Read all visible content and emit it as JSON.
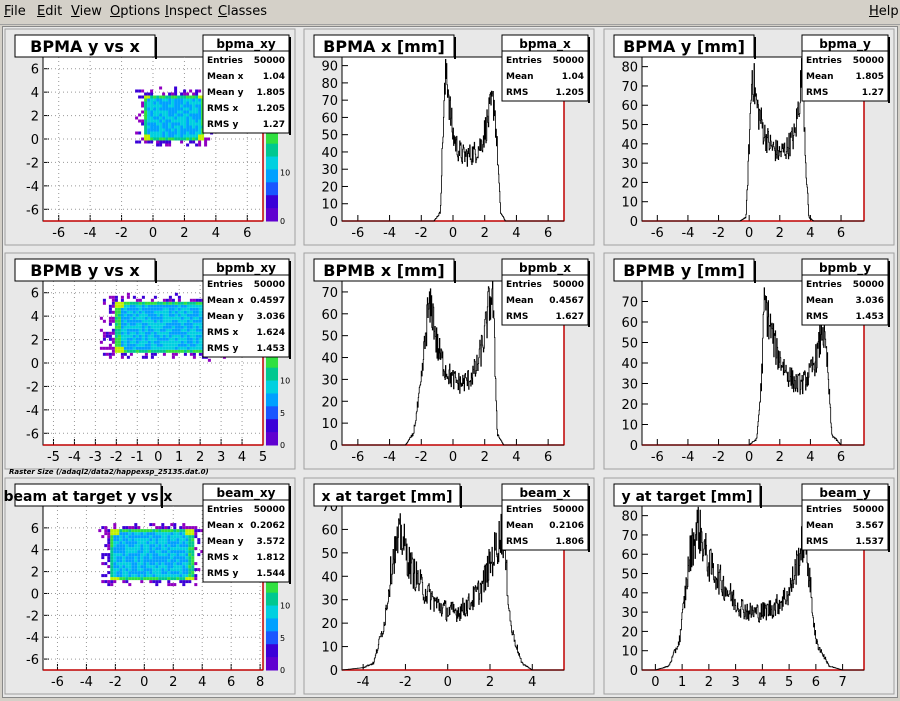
{
  "menu": {
    "items": [
      {
        "label": "File",
        "u": "F",
        "rest": "ile"
      },
      {
        "label": "Edit",
        "u": "E",
        "rest": "dit"
      },
      {
        "label": "View",
        "u": "V",
        "rest": "iew"
      },
      {
        "label": "Options",
        "u": "O",
        "rest": "ptions"
      },
      {
        "label": "Inspect",
        "u": "I",
        "rest": "nspect"
      },
      {
        "label": "Classes",
        "u": "C",
        "rest": "lasses"
      }
    ],
    "help": {
      "label": "Help",
      "u": "H",
      "rest": "elp"
    }
  },
  "raster_caption": "Raster Size (/adaql2/data2/happexsp_25135.dat.0)",
  "chart_data": [
    {
      "type": "scatter",
      "subtype": "2d-histogram",
      "title": "BPMA y vs x",
      "stats": {
        "name": "bpma_xy",
        "rows": [
          [
            "Entries",
            "50000"
          ],
          [
            "Mean x",
            "1.04"
          ],
          [
            "Mean y",
            "1.805"
          ],
          [
            "RMS x",
            "1.205"
          ],
          [
            "RMS y",
            "1.27"
          ]
        ]
      },
      "xlim": [
        -7,
        7
      ],
      "ylim": [
        -7,
        7
      ],
      "xticks": [
        "-6",
        "-4",
        "-2",
        "0",
        "2",
        "4",
        "6"
      ],
      "yticks": [
        "-6",
        "-4",
        "-2",
        "0",
        "2",
        "4",
        "6"
      ],
      "colorbar_ticks": [
        "0",
        "10",
        "20"
      ],
      "distribution": {
        "x_range": [
          -0.6,
          3.1
        ],
        "y_range": [
          0,
          3.9
        ]
      }
    },
    {
      "type": "bar",
      "subtype": "histogram",
      "title": "BPMA x [mm]",
      "stats": {
        "name": "bpma_x",
        "rows": [
          [
            "Entries",
            "50000"
          ],
          [
            "Mean",
            "1.04"
          ],
          [
            "RMS",
            "1.205"
          ]
        ]
      },
      "xlim": [
        -7,
        7
      ],
      "ylim": [
        0,
        95
      ],
      "xticks": [
        "-6",
        "-4",
        "-2",
        "0",
        "2",
        "4",
        "6"
      ],
      "yticks": [
        "0",
        "10",
        "20",
        "30",
        "40",
        "50",
        "60",
        "70",
        "80",
        "90"
      ],
      "x": [
        -1.2,
        -0.8,
        -0.6,
        -0.4,
        -0.2,
        0,
        0.3,
        0.6,
        1,
        1.4,
        1.8,
        2.1,
        2.4,
        2.6,
        2.8,
        3,
        3.3,
        3.6
      ],
      "values": [
        0,
        5,
        60,
        90,
        65,
        50,
        42,
        38,
        38,
        40,
        45,
        55,
        65,
        70,
        40,
        5,
        0,
        0
      ]
    },
    {
      "type": "bar",
      "subtype": "histogram",
      "title": "BPMA y [mm]",
      "stats": {
        "name": "bpma_y",
        "rows": [
          [
            "Entries",
            "50000"
          ],
          [
            "Mean",
            "1.805"
          ],
          [
            "RMS",
            "1.27"
          ]
        ]
      },
      "xlim": [
        -7,
        7.5
      ],
      "ylim": [
        0,
        85
      ],
      "xticks": [
        "-6",
        "-4",
        "-2",
        "0",
        "2",
        "4",
        "6"
      ],
      "yticks": [
        "0",
        "10",
        "20",
        "30",
        "40",
        "50",
        "60",
        "70",
        "80"
      ],
      "x": [
        -0.6,
        -0.2,
        0,
        0.2,
        0.5,
        1,
        1.5,
        2,
        2.5,
        3,
        3.3,
        3.5,
        3.7,
        3.9,
        4.2
      ],
      "values": [
        0,
        2,
        40,
        78,
        60,
        45,
        38,
        35,
        38,
        45,
        65,
        80,
        30,
        2,
        0
      ]
    },
    {
      "type": "scatter",
      "subtype": "2d-histogram",
      "title": "BPMB y vs x",
      "stats": {
        "name": "bpmb_xy",
        "rows": [
          [
            "Entries",
            "50000"
          ],
          [
            "Mean x",
            "0.4597"
          ],
          [
            "Mean y",
            "3.036"
          ],
          [
            "RMS x",
            "1.624"
          ],
          [
            "RMS y",
            "1.453"
          ]
        ]
      },
      "xlim": [
        -5.5,
        5
      ],
      "ylim": [
        -7,
        7
      ],
      "xticks": [
        "-5",
        "-4",
        "-3",
        "-2",
        "-1",
        "0",
        "1",
        "2",
        "3",
        "4",
        "5"
      ],
      "yticks": [
        "-6",
        "-4",
        "-2",
        "0",
        "2",
        "4",
        "6"
      ],
      "colorbar_ticks": [
        "0",
        "5",
        "10",
        "15"
      ],
      "distribution": {
        "x_range": [
          -2.2,
          2.8
        ],
        "y_range": [
          1,
          5.3
        ]
      }
    },
    {
      "type": "bar",
      "subtype": "histogram",
      "title": "BPMB x [mm]",
      "stats": {
        "name": "bpmb_x",
        "rows": [
          [
            "Entries",
            "50000"
          ],
          [
            "Mean",
            "0.4567"
          ],
          [
            "RMS",
            "1.627"
          ]
        ]
      },
      "xlim": [
        -7,
        7
      ],
      "ylim": [
        0,
        75
      ],
      "xticks": [
        "-6",
        "-4",
        "-2",
        "0",
        "2",
        "4",
        "6"
      ],
      "yticks": [
        "0",
        "10",
        "20",
        "30",
        "40",
        "50",
        "60",
        "70"
      ],
      "x": [
        -3,
        -2.5,
        -2,
        -1.6,
        -1.3,
        -1,
        -0.5,
        0,
        0.5,
        1,
        1.5,
        2,
        2.3,
        2.5,
        2.8,
        3.2,
        3.6
      ],
      "values": [
        0,
        5,
        28,
        60,
        62,
        45,
        35,
        30,
        28,
        30,
        35,
        50,
        65,
        70,
        5,
        0,
        0
      ]
    },
    {
      "type": "bar",
      "subtype": "histogram",
      "title": "BPMB y [mm]",
      "stats": {
        "name": "bpmb_y",
        "rows": [
          [
            "Entries",
            "50000"
          ],
          [
            "Mean",
            "3.036"
          ],
          [
            "RMS",
            "1.453"
          ]
        ]
      },
      "xlim": [
        -7,
        7.5
      ],
      "ylim": [
        0,
        80
      ],
      "xticks": [
        "-6",
        "-4",
        "-2",
        "0",
        "2",
        "4",
        "6"
      ],
      "yticks": [
        "0",
        "10",
        "20",
        "30",
        "40",
        "50",
        "60",
        "70"
      ],
      "x": [
        0,
        0.5,
        0.8,
        1,
        1.3,
        1.8,
        2.5,
        3,
        3.5,
        4,
        4.5,
        4.8,
        5.1,
        5.4,
        6,
        6.5
      ],
      "values": [
        0,
        3,
        30,
        70,
        60,
        45,
        35,
        30,
        30,
        35,
        45,
        58,
        40,
        5,
        0,
        0
      ]
    },
    {
      "type": "scatter",
      "subtype": "2d-histogram",
      "title": "beam at target y vs x",
      "stats": {
        "name": "beam_xy",
        "rows": [
          [
            "Entries",
            "50000"
          ],
          [
            "Mean x",
            "0.2062"
          ],
          [
            "Mean y",
            "3.572"
          ],
          [
            "RMS x",
            "1.812"
          ],
          [
            "RMS y",
            "1.544"
          ]
        ]
      },
      "xlim": [
        -7,
        8.2
      ],
      "ylim": [
        -7,
        8
      ],
      "xticks": [
        "-6",
        "-4",
        "-2",
        "0",
        "2",
        "4",
        "6",
        "8"
      ],
      "yticks": [
        "-6",
        "-4",
        "-2",
        "0",
        "2",
        "4",
        "6"
      ],
      "colorbar_ticks": [
        "0",
        "5",
        "10",
        "15"
      ],
      "distribution": {
        "x_range": [
          -2.5,
          3.3
        ],
        "y_range": [
          1.3,
          6
        ]
      }
    },
    {
      "type": "bar",
      "subtype": "histogram",
      "title": "x at target [mm]",
      "stats": {
        "name": "beam_x",
        "rows": [
          [
            "Entries",
            "50000"
          ],
          [
            "Mean",
            "0.2106"
          ],
          [
            "RMS",
            "1.806"
          ]
        ]
      },
      "xlim": [
        -5,
        5.5
      ],
      "ylim": [
        0,
        70
      ],
      "xticks": [
        "-4",
        "-2",
        "0",
        "2",
        "4"
      ],
      "yticks": [
        "0",
        "10",
        "20",
        "30",
        "40",
        "50",
        "60",
        "70"
      ],
      "x": [
        -5,
        -4,
        -3.5,
        -3,
        -2.6,
        -2.2,
        -1.8,
        -1.2,
        -0.5,
        0,
        0.5,
        1,
        1.6,
        2.2,
        2.6,
        3,
        3.5,
        4,
        5
      ],
      "values": [
        0,
        1,
        3,
        20,
        48,
        58,
        45,
        35,
        28,
        25,
        25,
        28,
        35,
        50,
        60,
        18,
        3,
        0,
        0
      ]
    },
    {
      "type": "bar",
      "subtype": "histogram",
      "title": "y at target [mm]",
      "stats": {
        "name": "beam_y",
        "rows": [
          [
            "Entries",
            "50000"
          ],
          [
            "Mean",
            "3.567"
          ],
          [
            "RMS",
            "1.537"
          ]
        ]
      },
      "xlim": [
        -0.5,
        7.8
      ],
      "ylim": [
        0,
        85
      ],
      "xticks": [
        "0",
        "1",
        "2",
        "3",
        "4",
        "5",
        "6",
        "7"
      ],
      "yticks": [
        "0",
        "10",
        "20",
        "30",
        "40",
        "50",
        "60",
        "70",
        "80"
      ],
      "x": [
        -0.5,
        0,
        0.5,
        0.9,
        1.3,
        1.6,
        2,
        2.5,
        3,
        3.5,
        4,
        4.5,
        5,
        5.3,
        5.6,
        6,
        6.5,
        7
      ],
      "values": [
        0,
        0,
        2,
        15,
        60,
        75,
        55,
        45,
        35,
        30,
        30,
        33,
        40,
        55,
        70,
        15,
        2,
        0
      ]
    }
  ]
}
